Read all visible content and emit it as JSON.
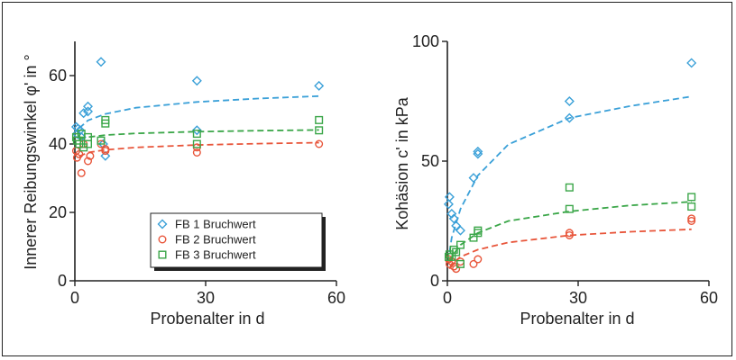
{
  "chart_data": [
    {
      "type": "scatter",
      "title": "",
      "xlabel": "Probenalter in d",
      "ylabel": "Innerer Reibungswinkel φ' in °",
      "xlim": [
        0,
        60
      ],
      "ylim": [
        0,
        70
      ],
      "xticks": [
        "0",
        "30",
        "60"
      ],
      "yticks": [
        "0",
        "20",
        "40",
        "60"
      ],
      "grid": false,
      "legend": {
        "position": "bottom-right",
        "entries": [
          "FB 1 Bruchwert",
          "FB 2 Bruchwert",
          "FB 3 Bruchwert"
        ]
      },
      "series": [
        {
          "name": "FB 1 Bruchwert",
          "marker": "diamond",
          "color": "#3aa0d8",
          "points": [
            [
              0.3,
              45
            ],
            [
              0.5,
              43
            ],
            [
              0.7,
              44.5
            ],
            [
              1.2,
              44
            ],
            [
              1.5,
              42
            ],
            [
              2,
              49
            ],
            [
              3,
              51
            ],
            [
              3,
              49.5
            ],
            [
              6,
              64
            ],
            [
              6.5,
              40
            ],
            [
              7,
              36.5
            ],
            [
              28,
              58.5
            ],
            [
              28,
              44
            ],
            [
              56,
              57
            ]
          ],
          "trend": [
            [
              1,
              44.6
            ],
            [
              3,
              46.9
            ],
            [
              7,
              48.8
            ],
            [
              14,
              50.6
            ],
            [
              28,
              52.3
            ],
            [
              42,
              53.3
            ],
            [
              56,
              54.0
            ]
          ]
        },
        {
          "name": "FB 2 Bruchwert",
          "marker": "circle",
          "color": "#e8553a",
          "points": [
            [
              0.3,
              38
            ],
            [
              0.5,
              36
            ],
            [
              1,
              37
            ],
            [
              1.5,
              31.5
            ],
            [
              2,
              40
            ],
            [
              3,
              35
            ],
            [
              3.5,
              36.5
            ],
            [
              6,
              40
            ],
            [
              7,
              38
            ],
            [
              7,
              38.5
            ],
            [
              28,
              37.5
            ],
            [
              28,
              39
            ],
            [
              56,
              40
            ]
          ],
          "trend": [
            [
              1,
              36.4
            ],
            [
              3,
              37.5
            ],
            [
              7,
              38.3
            ],
            [
              14,
              39.0
            ],
            [
              28,
              39.7
            ],
            [
              42,
              40.1
            ],
            [
              56,
              40.4
            ]
          ]
        },
        {
          "name": "FB 3 Bruchwert",
          "marker": "square",
          "color": "#3aa648",
          "points": [
            [
              0.3,
              42
            ],
            [
              0.5,
              41
            ],
            [
              1,
              40
            ],
            [
              1.5,
              43
            ],
            [
              2,
              39
            ],
            [
              3,
              42
            ],
            [
              3,
              40
            ],
            [
              6,
              41
            ],
            [
              7,
              46
            ],
            [
              7,
              47
            ],
            [
              28,
              40
            ],
            [
              28,
              43
            ],
            [
              56,
              47
            ],
            [
              56,
              44
            ]
          ],
          "trend": [
            [
              1,
              41.4
            ],
            [
              3,
              42.0
            ],
            [
              7,
              42.6
            ],
            [
              14,
              43.1
            ],
            [
              28,
              43.6
            ],
            [
              42,
              43.9
            ],
            [
              56,
              44.1
            ]
          ]
        }
      ]
    },
    {
      "type": "scatter",
      "title": "",
      "xlabel": "Probenalter in d",
      "ylabel": "Kohäsion c' in kPa",
      "xlim": [
        0,
        60
      ],
      "ylim": [
        0,
        100
      ],
      "xticks": [
        "0",
        "30",
        "60"
      ],
      "yticks": [
        "0",
        "50",
        "100"
      ],
      "grid": false,
      "series": [
        {
          "name": "FB 1 Bruchwert",
          "marker": "diamond",
          "color": "#3aa0d8",
          "points": [
            [
              0.3,
              32
            ],
            [
              0.5,
              35
            ],
            [
              1,
              28
            ],
            [
              1.5,
              26
            ],
            [
              2,
              23
            ],
            [
              3,
              21
            ],
            [
              6,
              43
            ],
            [
              7,
              53
            ],
            [
              7,
              54
            ],
            [
              28,
              75
            ],
            [
              28,
              68
            ],
            [
              56,
              91
            ]
          ],
          "trend": [
            [
              0.5,
              12
            ],
            [
              1,
              18
            ],
            [
              3,
              30
            ],
            [
              7,
              44
            ],
            [
              14,
              57
            ],
            [
              28,
              68
            ],
            [
              42,
              73
            ],
            [
              56,
              77
            ]
          ]
        },
        {
          "name": "FB 2 Bruchwert",
          "marker": "circle",
          "color": "#e8553a",
          "points": [
            [
              0.3,
              9
            ],
            [
              0.5,
              7
            ],
            [
              1,
              8
            ],
            [
              1.5,
              6
            ],
            [
              2,
              5
            ],
            [
              3,
              8
            ],
            [
              6,
              7
            ],
            [
              7,
              9
            ],
            [
              28,
              19
            ],
            [
              28,
              20
            ],
            [
              56,
              25
            ],
            [
              56,
              26
            ]
          ],
          "trend": [
            [
              0.5,
              5
            ],
            [
              1,
              7
            ],
            [
              3,
              10
            ],
            [
              7,
              13
            ],
            [
              14,
              16
            ],
            [
              28,
              19
            ],
            [
              42,
              20.5
            ],
            [
              56,
              21.5
            ]
          ]
        },
        {
          "name": "FB 3 Bruchwert",
          "marker": "square",
          "color": "#3aa648",
          "points": [
            [
              0.3,
              10
            ],
            [
              0.5,
              11
            ],
            [
              1,
              10
            ],
            [
              1.5,
              13
            ],
            [
              2,
              12
            ],
            [
              3,
              15
            ],
            [
              3,
              7
            ],
            [
              6,
              18
            ],
            [
              7,
              20
            ],
            [
              7,
              21
            ],
            [
              28,
              39
            ],
            [
              28,
              30
            ],
            [
              56,
              35
            ],
            [
              56,
              31
            ]
          ],
          "trend": [
            [
              0.5,
              8
            ],
            [
              1,
              10
            ],
            [
              3,
              15
            ],
            [
              7,
              20
            ],
            [
              14,
              25
            ],
            [
              28,
              29
            ],
            [
              42,
              31.5
            ],
            [
              56,
              33
            ]
          ]
        }
      ]
    }
  ]
}
